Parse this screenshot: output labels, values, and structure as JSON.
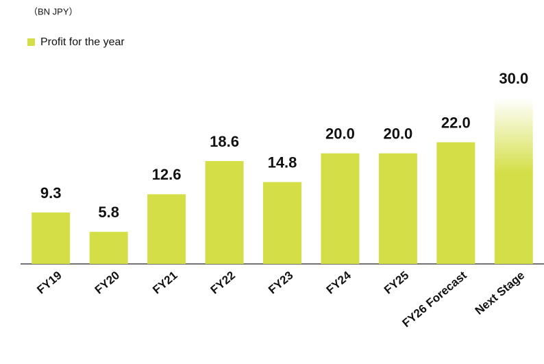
{
  "chart_data": {
    "type": "bar",
    "subtitle": "（BN JPY）",
    "legend": "Profit for the year",
    "categories": [
      "FY19",
      "FY20",
      "FY21",
      "FY22",
      "FY23",
      "FY24",
      "FY25",
      "FY26 Forecast",
      "Next Stage"
    ],
    "values": [
      9.3,
      5.8,
      12.6,
      18.6,
      14.8,
      20.0,
      20.0,
      22.0,
      30.0
    ],
    "value_labels": [
      "9.3",
      "5.8",
      "12.6",
      "18.6",
      "14.8",
      "20.0",
      "20.0",
      "22.0",
      "30.0"
    ],
    "color": "#d4df48",
    "ylim": [
      0,
      30
    ]
  }
}
